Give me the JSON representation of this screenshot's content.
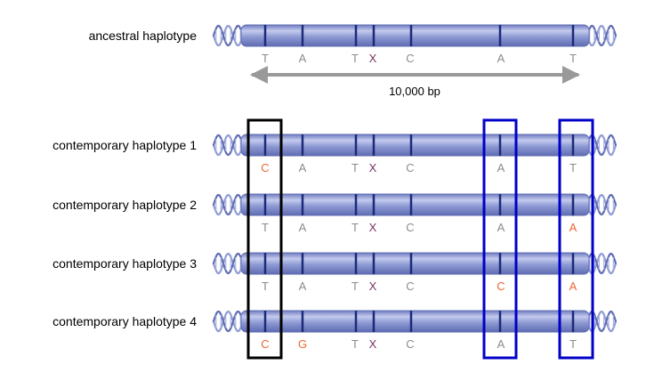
{
  "colors": {
    "chromosome_body": "#8f9bd4",
    "chromosome_highlight": "#c4cbee",
    "chromosome_shadow": "#5f6cb2",
    "snp_tick": "#1c2a7a",
    "allele_normal": "#8c8c8c",
    "allele_mutant": "#ee6633",
    "crossover": "#7a3366",
    "black_box": "#000000",
    "blue_box": "#0000c8",
    "arrow": "#999999"
  },
  "span_label": "10,000 bp",
  "haplotypes": [
    {
      "label": "ancestral haplotype",
      "alleles": [
        {
          "text": "T",
          "mutant": false
        },
        {
          "text": "A",
          "mutant": false
        },
        {
          "text": "T",
          "mutant": false
        },
        {
          "text": "X",
          "crossover": true
        },
        {
          "text": "C",
          "mutant": false
        },
        {
          "text": "A",
          "mutant": false
        },
        {
          "text": "T",
          "mutant": false
        }
      ]
    },
    {
      "label": "contemporary haplotype 1",
      "alleles": [
        {
          "text": "C",
          "mutant": true
        },
        {
          "text": "A",
          "mutant": false
        },
        {
          "text": "T",
          "mutant": false
        },
        {
          "text": "X",
          "crossover": true
        },
        {
          "text": "C",
          "mutant": false
        },
        {
          "text": "A",
          "mutant": false
        },
        {
          "text": "T",
          "mutant": false
        }
      ]
    },
    {
      "label": "contemporary haplotype 2",
      "alleles": [
        {
          "text": "T",
          "mutant": false
        },
        {
          "text": "A",
          "mutant": false
        },
        {
          "text": "T",
          "mutant": false
        },
        {
          "text": "X",
          "crossover": true
        },
        {
          "text": "C",
          "mutant": false
        },
        {
          "text": "A",
          "mutant": false
        },
        {
          "text": "A",
          "mutant": true
        }
      ]
    },
    {
      "label": "contemporary haplotype 3",
      "alleles": [
        {
          "text": "T",
          "mutant": false
        },
        {
          "text": "A",
          "mutant": false
        },
        {
          "text": "T",
          "mutant": false
        },
        {
          "text": "X",
          "crossover": true
        },
        {
          "text": "C",
          "mutant": false
        },
        {
          "text": "C",
          "mutant": true
        },
        {
          "text": "A",
          "mutant": true
        }
      ]
    },
    {
      "label": "contemporary haplotype 4",
      "alleles": [
        {
          "text": "C",
          "mutant": true
        },
        {
          "text": "G",
          "mutant": true
        },
        {
          "text": "T",
          "mutant": false
        },
        {
          "text": "X",
          "crossover": true
        },
        {
          "text": "C",
          "mutant": false
        },
        {
          "text": "A",
          "mutant": false
        },
        {
          "text": "T",
          "mutant": false
        }
      ]
    }
  ]
}
